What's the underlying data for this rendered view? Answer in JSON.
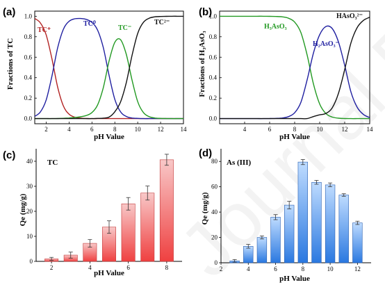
{
  "watermark": "Journal Pre-proof",
  "chart_data": [
    {
      "panel": "(a)",
      "type": "line",
      "xlabel": "pH Value",
      "ylabel": "Fractions of TC",
      "xlim": [
        1,
        14
      ],
      "ylim": [
        -0.05,
        1.05
      ],
      "xticks": [
        2,
        4,
        6,
        8,
        10,
        12,
        14
      ],
      "yticks": [
        "0.0",
        "0.2",
        "0.4",
        "0.6",
        "0.8",
        "1.0"
      ],
      "x": [
        1,
        1.5,
        2,
        2.5,
        3,
        3.5,
        4,
        4.5,
        5,
        5.5,
        6,
        6.5,
        7,
        7.5,
        8,
        8.5,
        9,
        9.5,
        10,
        10.5,
        11,
        11.5,
        12,
        12.5,
        13,
        13.5,
        14
      ],
      "series": [
        {
          "name": "TC+",
          "label": "TC⁺",
          "color": "#b22222",
          "values": [
            0.978,
            0.934,
            0.817,
            0.586,
            0.309,
            0.124,
            0.043,
            0.014,
            0.004,
            0.001,
            0,
            0,
            0,
            0,
            0,
            0,
            0,
            0,
            0,
            0,
            0,
            0,
            0,
            0,
            0,
            0,
            0
          ]
        },
        {
          "name": "TC0",
          "label": "TC⁰",
          "color": "#1f1fa0",
          "values": [
            0.022,
            0.066,
            0.183,
            0.414,
            0.69,
            0.873,
            0.951,
            0.975,
            0.978,
            0.969,
            0.94,
            0.863,
            0.69,
            0.421,
            0.188,
            0.066,
            0.021,
            0.006,
            0.002,
            0,
            0,
            0,
            0,
            0,
            0,
            0,
            0
          ]
        },
        {
          "name": "TC-",
          "label": "TC⁻",
          "color": "#229922",
          "values": [
            0,
            0,
            0,
            0,
            0.001,
            0.003,
            0.006,
            0.011,
            0.018,
            0.03,
            0.059,
            0.135,
            0.306,
            0.564,
            0.745,
            0.771,
            0.629,
            0.379,
            0.165,
            0.059,
            0.019,
            0.006,
            0.002,
            0.001,
            0,
            0,
            0
          ]
        },
        {
          "name": "TC2-",
          "label": "TC²⁻",
          "color": "#111111",
          "values": [
            0,
            0,
            0,
            0,
            0,
            0,
            0,
            0,
            0,
            0,
            0,
            0.002,
            0.004,
            0.015,
            0.067,
            0.163,
            0.35,
            0.615,
            0.833,
            0.941,
            0.981,
            0.994,
            0.998,
            0.999,
            1.0,
            1.0,
            1.0
          ]
        }
      ]
    },
    {
      "panel": "(b)",
      "type": "line",
      "xlabel": "pH Value",
      "ylabel": "Fractions of H₃AsO₃",
      "xlim": [
        2,
        14
      ],
      "ylim": [
        -0.05,
        1.05
      ],
      "xticks": [
        4,
        6,
        8,
        10,
        12,
        14
      ],
      "yticks": [
        "0.0",
        "0.2",
        "0.4",
        "0.6",
        "0.8",
        "1.0"
      ],
      "x": [
        2,
        2.5,
        3,
        3.5,
        4,
        4.5,
        5,
        5.5,
        6,
        6.5,
        7,
        7.5,
        8,
        8.5,
        9,
        9.5,
        10,
        10.5,
        11,
        11.5,
        12,
        12.5,
        13,
        13.5,
        14
      ],
      "series": [
        {
          "name": "H3AsO3",
          "label": "H₃AsO₃",
          "color": "#229922",
          "values": [
            1.0,
            1.0,
            1.0,
            1.0,
            1.0,
            1.0,
            1.0,
            1.0,
            0.999,
            0.998,
            0.994,
            0.981,
            0.943,
            0.84,
            0.62,
            0.34,
            0.143,
            0.049,
            0.015,
            0.004,
            0.001,
            0,
            0,
            0,
            0
          ]
        },
        {
          "name": "H2AsO3-",
          "label": "H₂AsO₃⁻",
          "color": "#1f1fa0",
          "values": [
            0,
            0,
            0,
            0,
            0,
            0,
            0,
            0,
            0.001,
            0.002,
            0.006,
            0.019,
            0.057,
            0.16,
            0.38,
            0.64,
            0.82,
            0.9,
            0.88,
            0.75,
            0.52,
            0.26,
            0.11,
            0.04,
            0.01
          ]
        },
        {
          "name": "HAsO32-",
          "label": "HAsO₃²⁻",
          "color": "#111111",
          "values": [
            0,
            0,
            0,
            0,
            0,
            0,
            0,
            0,
            0,
            0,
            0,
            0,
            0,
            0,
            0,
            0.02,
            0.037,
            0.051,
            0.105,
            0.246,
            0.479,
            0.74,
            0.89,
            0.96,
            0.99
          ]
        }
      ]
    },
    {
      "panel": "(c)",
      "type": "bar",
      "annotation": "TC",
      "xlabel": "pH Value",
      "ylabel": "Qe (mg/g)",
      "xlim": [
        1.2,
        8.8
      ],
      "ylim": [
        0,
        45
      ],
      "xticks": [
        2,
        4,
        6,
        8
      ],
      "yticks": [
        0,
        10,
        20,
        30,
        40
      ],
      "x": [
        2,
        3,
        4,
        5,
        6,
        7,
        8
      ],
      "values": [
        1.0,
        2.5,
        7.2,
        13.7,
        23.0,
        27.3,
        40.6
      ],
      "errors": [
        0.6,
        1.2,
        1.5,
        2.5,
        2.5,
        2.8,
        2.2
      ],
      "colors": {
        "top": "#f8c8c8",
        "bottom": "#ef4040",
        "edge": "#c43a3a"
      }
    },
    {
      "panel": "(d)",
      "type": "bar",
      "annotation": "As (III)",
      "xlabel": "pH Value",
      "ylabel": "Qe (mg/g)",
      "xlim": [
        2,
        13
      ],
      "ylim": [
        0,
        90
      ],
      "xticks": [
        2,
        4,
        6,
        8,
        10,
        12
      ],
      "yticks": [
        0,
        20,
        40,
        60,
        80
      ],
      "x": [
        3,
        4,
        5,
        6,
        7,
        8,
        9,
        10,
        11,
        12
      ],
      "values": [
        1.5,
        13.0,
        20.0,
        36.0,
        45.5,
        79.5,
        63.5,
        61.5,
        53.5,
        31.5
      ],
      "errors": [
        1.0,
        1.5,
        1.2,
        2.0,
        3.0,
        2.0,
        1.5,
        1.5,
        1.0,
        1.3
      ],
      "colors": {
        "top": "#bfdcff",
        "bottom": "#2a78e0",
        "edge": "#2a5fb0"
      }
    }
  ]
}
